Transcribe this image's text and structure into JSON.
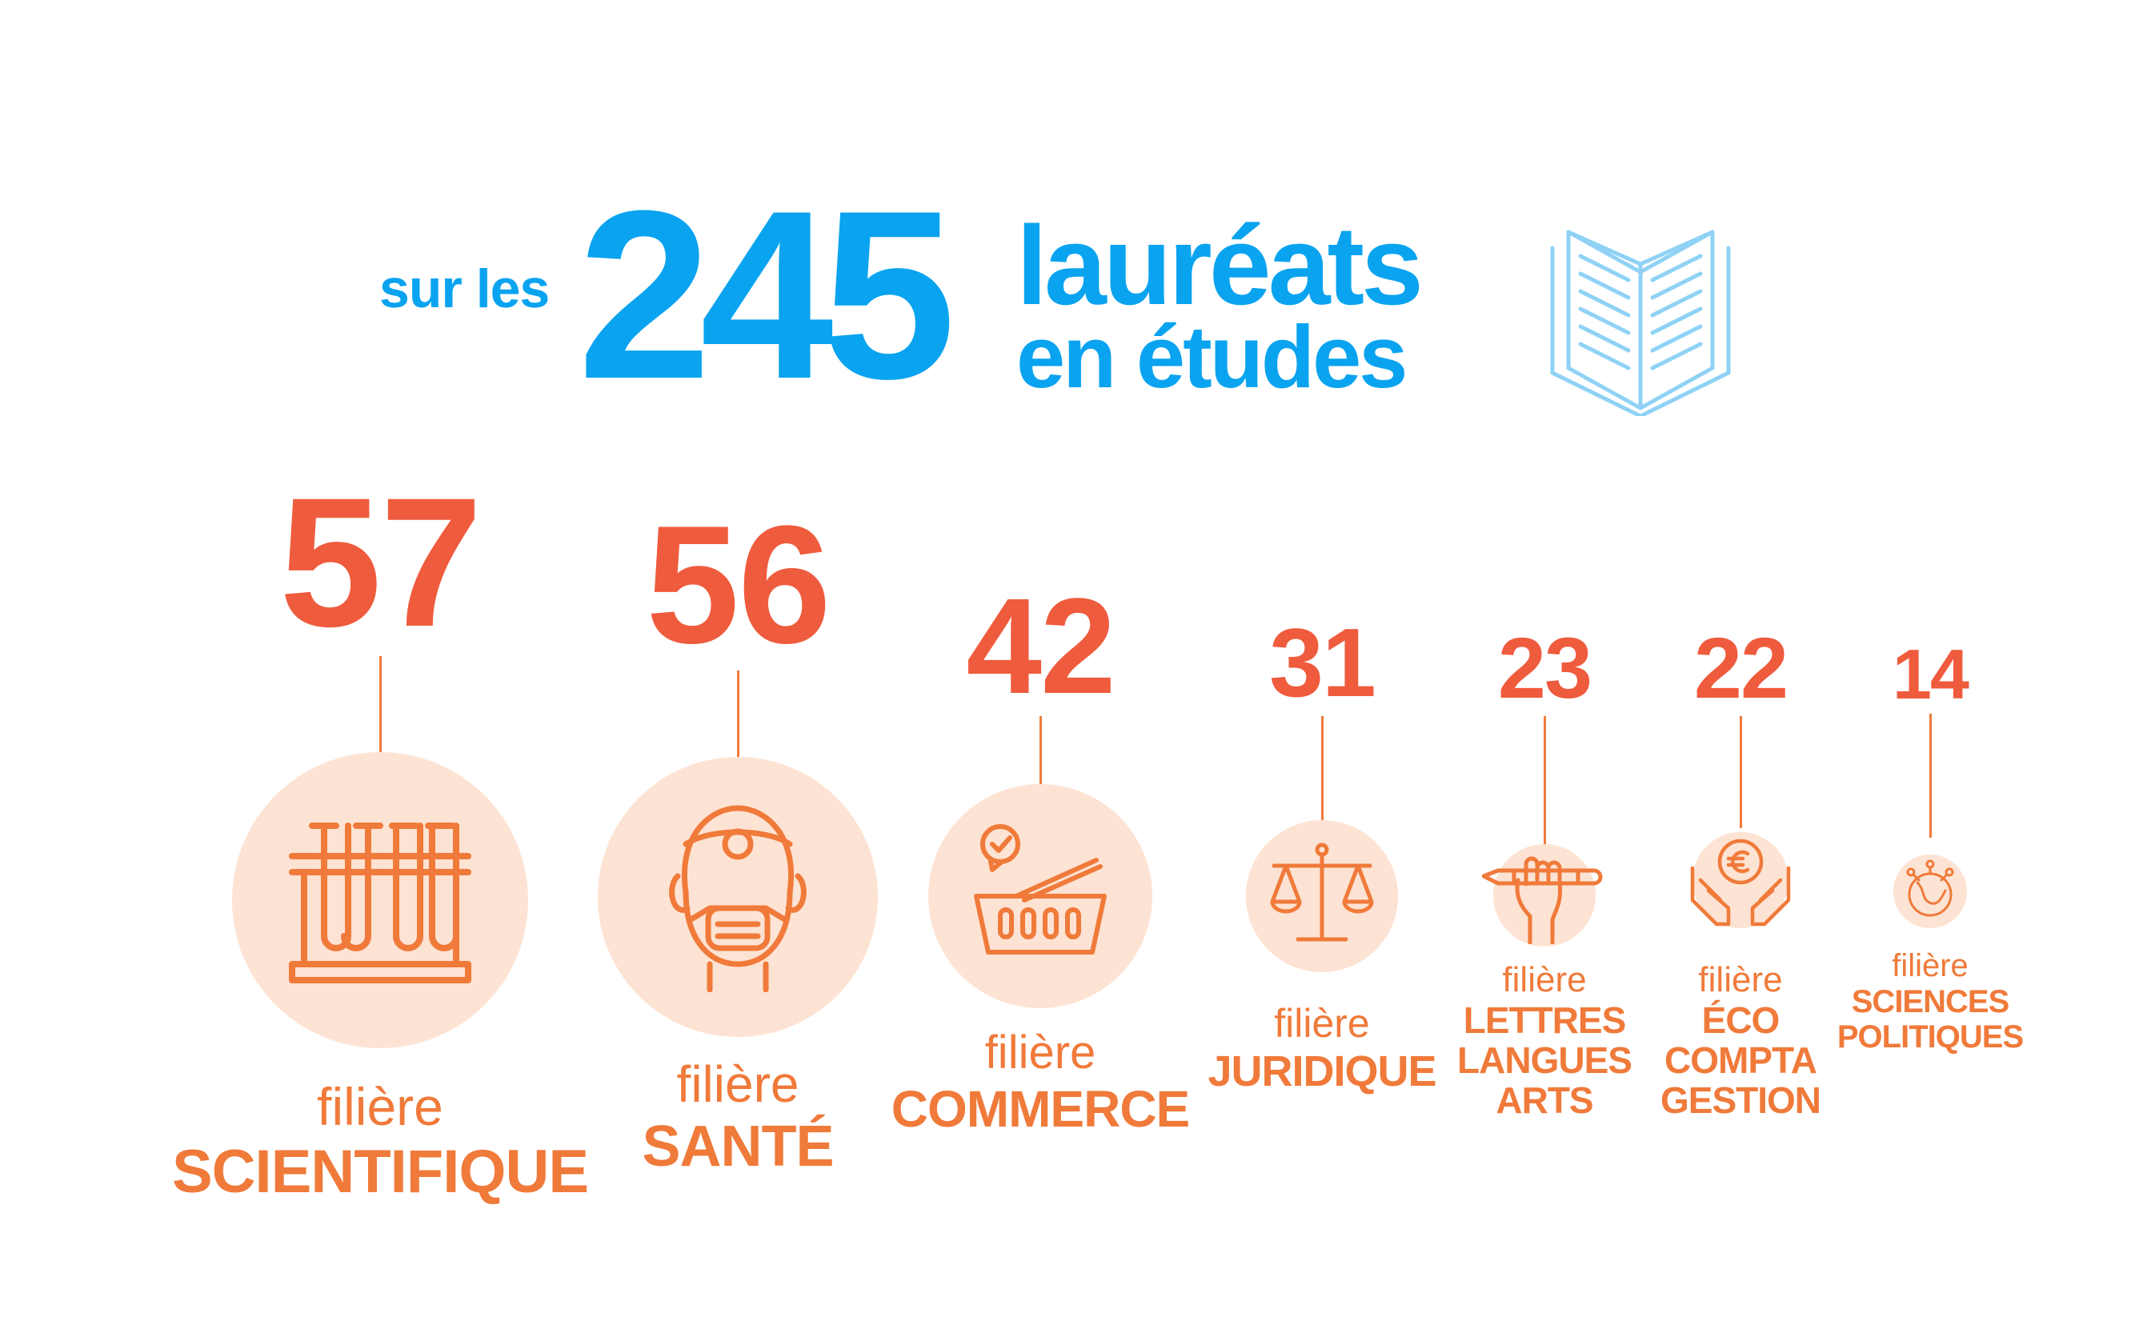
{
  "header": {
    "prefix": "sur les",
    "total": "245",
    "line1": "lauréats",
    "line2": "en études",
    "icon": "open-book-icon"
  },
  "colors": {
    "blue": "#0aa3f0",
    "red": "#ef5b3d",
    "orange": "#f07a3a",
    "peach": "#fde3d3"
  },
  "filieres": [
    {
      "value": "57",
      "prefix": "filière",
      "name": [
        "SCIENTIFIQUE"
      ],
      "icon": "test-tubes-icon"
    },
    {
      "value": "56",
      "prefix": "filière",
      "name": [
        "SANTÉ"
      ],
      "icon": "doctor-icon"
    },
    {
      "value": "42",
      "prefix": "filière",
      "name": [
        "COMMERCE"
      ],
      "icon": "shopping-basket-icon"
    },
    {
      "value": "31",
      "prefix": "filière",
      "name": [
        "JURIDIQUE"
      ],
      "icon": "scales-icon"
    },
    {
      "value": "23",
      "prefix": "filière",
      "name": [
        "LETTRES",
        "LANGUES",
        "ARTS"
      ],
      "icon": "hand-pencil-icon"
    },
    {
      "value": "22",
      "prefix": "filière",
      "name": [
        "ÉCO",
        "COMPTA",
        "GESTION"
      ],
      "icon": "hands-euro-icon"
    },
    {
      "value": "14",
      "prefix": "filière",
      "name": [
        "SCIENCES",
        "POLITIQUES"
      ],
      "icon": "network-globe-icon"
    }
  ]
}
